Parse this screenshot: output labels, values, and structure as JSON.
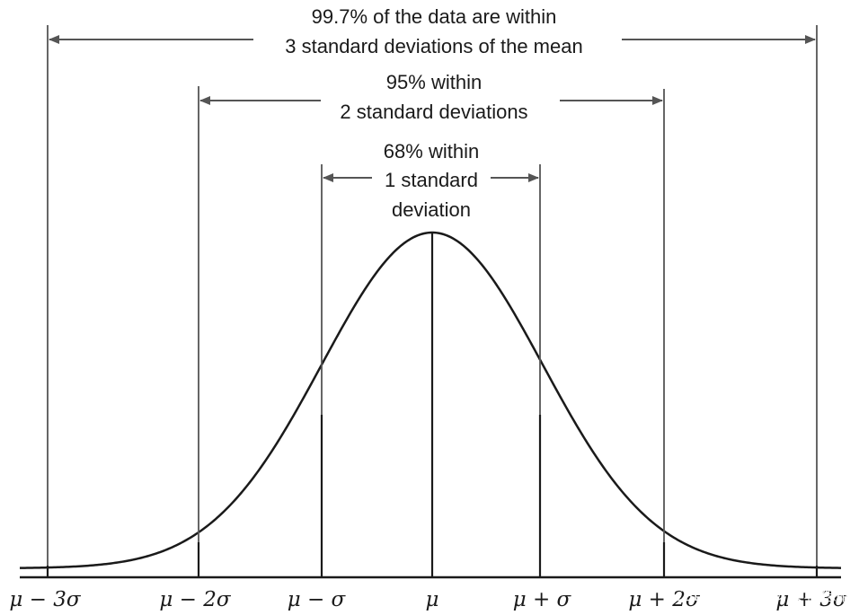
{
  "annotations": {
    "three_sigma": {
      "line1": "99.7% of the data are within",
      "line2": "3 standard deviations of the mean"
    },
    "two_sigma": {
      "line1": "95% within",
      "line2": "2 standard deviations"
    },
    "one_sigma": {
      "line1": "68% within",
      "line2": "1 standard",
      "line3": "deviation"
    }
  },
  "tick_labels": [
    "μ − 3σ",
    "μ − 2σ",
    "μ − σ",
    "μ",
    "μ + σ",
    "μ + 2σ",
    "μ + 3σ"
  ],
  "watermark": "CSDN @妙龄少女郭德纲",
  "colors": {
    "line": "#1a1a1a",
    "arrow": "#555555",
    "background": "#ffffff"
  }
}
